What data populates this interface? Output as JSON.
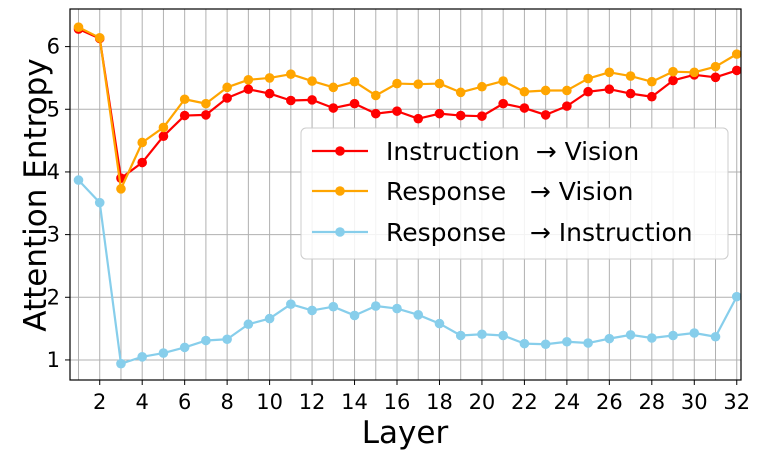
{
  "chart_data": {
    "type": "line",
    "xlabel": "Layer",
    "ylabel": "Attention Entropy",
    "xlim": [
      0.6,
      32.2
    ],
    "ylim": [
      0.68,
      6.6
    ],
    "xticks": [
      2,
      4,
      6,
      8,
      10,
      12,
      14,
      16,
      18,
      20,
      22,
      24,
      26,
      28,
      30,
      32
    ],
    "yticks": [
      1,
      2,
      3,
      4,
      5,
      6
    ],
    "grid": true,
    "legend_position": "center-right",
    "x": [
      1,
      2,
      3,
      4,
      5,
      6,
      7,
      8,
      9,
      10,
      11,
      12,
      13,
      14,
      15,
      16,
      17,
      18,
      19,
      20,
      21,
      22,
      23,
      24,
      25,
      26,
      27,
      28,
      29,
      30,
      31,
      32
    ],
    "series": [
      {
        "name": "Instruction  → Vision",
        "color": "#ff0000",
        "values": [
          6.28,
          6.13,
          3.9,
          4.15,
          4.57,
          4.9,
          4.91,
          5.18,
          5.32,
          5.25,
          5.14,
          5.15,
          5.02,
          5.09,
          4.93,
          4.97,
          4.85,
          4.93,
          4.9,
          4.89,
          5.09,
          5.02,
          4.91,
          5.05,
          5.28,
          5.32,
          5.25,
          5.2,
          5.46,
          5.55,
          5.51,
          5.62
        ]
      },
      {
        "name": "Response   → Vision",
        "color": "#ffa500",
        "values": [
          6.31,
          6.14,
          3.73,
          4.47,
          4.71,
          5.16,
          5.09,
          5.35,
          5.47,
          5.5,
          5.56,
          5.45,
          5.35,
          5.44,
          5.22,
          5.41,
          5.4,
          5.41,
          5.27,
          5.36,
          5.45,
          5.28,
          5.3,
          5.3,
          5.49,
          5.59,
          5.53,
          5.44,
          5.6,
          5.59,
          5.68,
          5.88
        ]
      },
      {
        "name": "Response   → Instruction",
        "color": "#87ceeb",
        "values": [
          3.87,
          3.51,
          0.94,
          1.05,
          1.11,
          1.2,
          1.31,
          1.33,
          1.57,
          1.66,
          1.89,
          1.79,
          1.85,
          1.71,
          1.86,
          1.82,
          1.72,
          1.58,
          1.39,
          1.41,
          1.39,
          1.26,
          1.25,
          1.29,
          1.27,
          1.34,
          1.4,
          1.35,
          1.39,
          1.43,
          1.37,
          2.01
        ]
      }
    ]
  }
}
